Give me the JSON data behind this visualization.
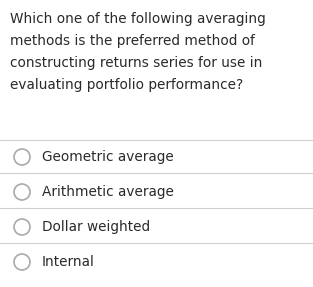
{
  "question_lines": [
    "Which one of the following averaging",
    "methods is the preferred method of",
    "constructing returns series for use in",
    "evaluating portfolio performance?"
  ],
  "options": [
    "Geometric average",
    "Arithmetic average",
    "Dollar weighted",
    "Internal"
  ],
  "background_color": "#ffffff",
  "text_color": "#2a2a2a",
  "question_fontsize": 9.8,
  "option_fontsize": 9.8,
  "separator_color": "#d0d0d0",
  "circle_edge_color": "#aaaaaa",
  "fig_width": 3.13,
  "fig_height": 2.87,
  "dpi": 100
}
